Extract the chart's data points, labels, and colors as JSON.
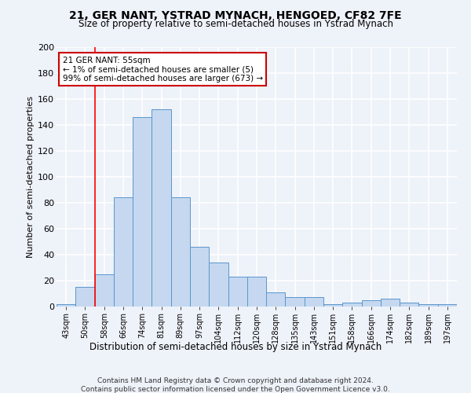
{
  "title": "21, GER NANT, YSTRAD MYNACH, HENGOED, CF82 7FE",
  "subtitle": "Size of property relative to semi-detached houses in Ystrad Mynach",
  "xlabel": "Distribution of semi-detached houses by size in Ystrad Mynach",
  "ylabel": "Number of semi-detached properties",
  "footer_line1": "Contains HM Land Registry data © Crown copyright and database right 2024.",
  "footer_line2": "Contains public sector information licensed under the Open Government Licence v3.0.",
  "categories": [
    "43sqm",
    "50sqm",
    "58sqm",
    "66sqm",
    "74sqm",
    "81sqm",
    "89sqm",
    "97sqm",
    "104sqm",
    "112sqm",
    "120sqm",
    "128sqm",
    "135sqm",
    "143sqm",
    "151sqm",
    "158sqm",
    "166sqm",
    "174sqm",
    "182sqm",
    "189sqm",
    "197sqm"
  ],
  "values": [
    2,
    15,
    25,
    84,
    146,
    152,
    84,
    46,
    34,
    23,
    23,
    11,
    7,
    7,
    2,
    3,
    5,
    6,
    3,
    2,
    2
  ],
  "bar_color": "#c5d8f0",
  "bar_edge_color": "#5a96cc",
  "red_line_x": 1.5,
  "ylim": [
    0,
    200
  ],
  "yticks": [
    0,
    20,
    40,
    60,
    80,
    100,
    120,
    140,
    160,
    180,
    200
  ],
  "background_color": "#eef2f9",
  "grid_color": "#ffffff",
  "annotation_line1": "21 GER NANT: 55sqm",
  "annotation_line2": "← 1% of semi-detached houses are smaller (5)",
  "annotation_line3": "99% of semi-detached houses are larger (673) →",
  "annotation_box_facecolor": "#ffffff",
  "annotation_box_edgecolor": "#cc0000"
}
